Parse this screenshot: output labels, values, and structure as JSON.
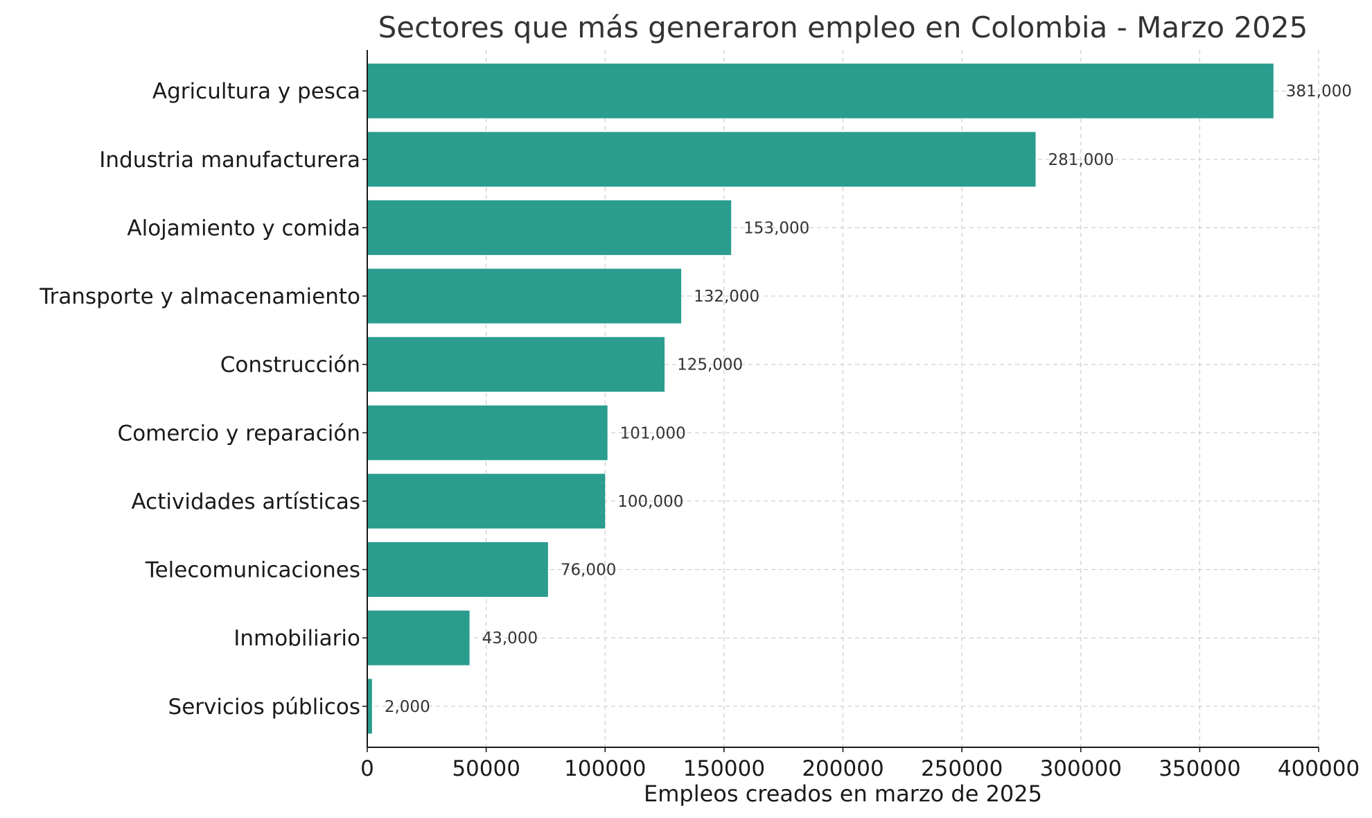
{
  "chart_data": {
    "type": "bar",
    "orientation": "horizontal",
    "title": "Sectores que más generaron empleo en Colombia - Marzo 2025",
    "xlabel": "Empleos creados en marzo de 2025",
    "ylabel": "",
    "xlim": [
      0,
      400000
    ],
    "xticks": [
      0,
      50000,
      100000,
      150000,
      200000,
      250000,
      300000,
      350000,
      400000
    ],
    "xtick_labels": [
      "0",
      "50000",
      "100000",
      "150000",
      "200000",
      "250000",
      "300000",
      "350000",
      "400000"
    ],
    "grid": true,
    "bar_color": "#2a9d8f",
    "categories": [
      "Agricultura y pesca",
      "Industria manufacturera",
      "Alojamiento y comida",
      "Transporte y almacenamiento",
      "Construcción",
      "Comercio y reparación",
      "Actividades artísticas",
      "Telecomunicaciones",
      "Inmobiliario",
      "Servicios públicos"
    ],
    "values": [
      381000,
      281000,
      153000,
      132000,
      125000,
      101000,
      100000,
      76000,
      43000,
      2000
    ],
    "value_labels": [
      "381,000",
      "281,000",
      "153,000",
      "132,000",
      "125,000",
      "101,000",
      "100,000",
      "76,000",
      "43,000",
      "2,000"
    ]
  }
}
